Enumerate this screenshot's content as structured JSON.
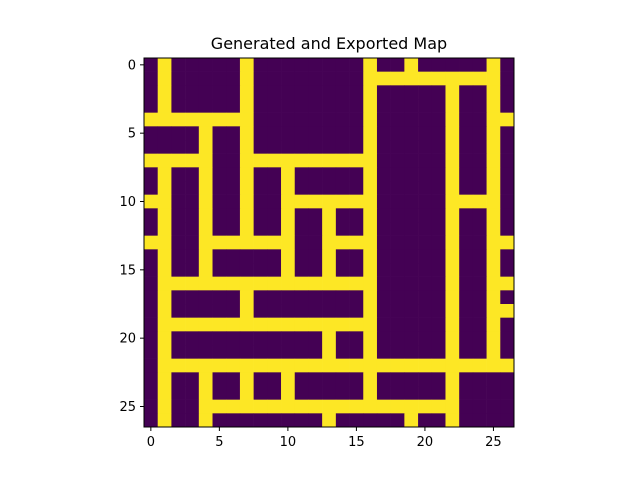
{
  "chart_data": {
    "type": "heatmap",
    "title": "Generated and Exported Map",
    "xlabel": "",
    "ylabel": "",
    "rows": 27,
    "cols": 27,
    "xlim": [
      -0.5,
      26.5
    ],
    "ylim": [
      26.5,
      -0.5
    ],
    "x_ticks": [
      0,
      5,
      10,
      15,
      20,
      25
    ],
    "y_ticks": [
      0,
      5,
      10,
      15,
      20,
      25
    ],
    "grid": false,
    "colormap": "viridis",
    "colors": {
      "0": "#440154",
      "1": "#fde725"
    },
    "cells": [
      [
        0,
        1,
        0,
        0,
        0,
        0,
        0,
        1,
        0,
        0,
        0,
        0,
        0,
        0,
        0,
        0,
        1,
        0,
        0,
        1,
        0,
        0,
        0,
        0,
        0,
        1,
        0
      ],
      [
        0,
        1,
        0,
        0,
        0,
        0,
        0,
        1,
        0,
        0,
        0,
        0,
        0,
        0,
        0,
        0,
        1,
        1,
        1,
        1,
        1,
        1,
        1,
        1,
        1,
        1,
        0
      ],
      [
        0,
        1,
        0,
        0,
        0,
        0,
        0,
        1,
        0,
        0,
        0,
        0,
        0,
        0,
        0,
        0,
        1,
        0,
        0,
        0,
        0,
        0,
        1,
        0,
        0,
        1,
        0
      ],
      [
        0,
        1,
        0,
        0,
        0,
        0,
        0,
        1,
        0,
        0,
        0,
        0,
        0,
        0,
        0,
        0,
        1,
        0,
        0,
        0,
        0,
        0,
        1,
        0,
        0,
        1,
        0
      ],
      [
        1,
        1,
        1,
        1,
        1,
        1,
        1,
        1,
        0,
        0,
        0,
        0,
        0,
        0,
        0,
        0,
        1,
        0,
        0,
        0,
        0,
        0,
        1,
        0,
        0,
        1,
        1
      ],
      [
        0,
        0,
        0,
        0,
        1,
        0,
        0,
        1,
        0,
        0,
        0,
        0,
        0,
        0,
        0,
        0,
        1,
        0,
        0,
        0,
        0,
        0,
        1,
        0,
        0,
        1,
        0
      ],
      [
        0,
        0,
        0,
        0,
        1,
        0,
        0,
        1,
        0,
        0,
        0,
        0,
        0,
        0,
        0,
        0,
        1,
        0,
        0,
        0,
        0,
        0,
        1,
        0,
        0,
        1,
        0
      ],
      [
        1,
        1,
        1,
        1,
        1,
        0,
        0,
        1,
        1,
        1,
        1,
        1,
        1,
        1,
        1,
        1,
        1,
        0,
        0,
        0,
        0,
        0,
        1,
        0,
        0,
        1,
        0
      ],
      [
        0,
        1,
        0,
        0,
        1,
        0,
        0,
        1,
        0,
        0,
        1,
        0,
        0,
        0,
        0,
        0,
        1,
        0,
        0,
        0,
        0,
        0,
        1,
        0,
        0,
        1,
        0
      ],
      [
        0,
        1,
        0,
        0,
        1,
        0,
        0,
        1,
        0,
        0,
        1,
        0,
        0,
        0,
        0,
        0,
        1,
        0,
        0,
        0,
        0,
        0,
        1,
        0,
        0,
        1,
        0
      ],
      [
        1,
        1,
        0,
        0,
        1,
        0,
        0,
        1,
        0,
        0,
        1,
        1,
        1,
        1,
        1,
        1,
        1,
        0,
        0,
        0,
        0,
        0,
        1,
        1,
        1,
        1,
        0
      ],
      [
        0,
        1,
        0,
        0,
        1,
        0,
        0,
        1,
        0,
        0,
        1,
        0,
        0,
        1,
        0,
        0,
        1,
        0,
        0,
        0,
        0,
        0,
        1,
        0,
        0,
        1,
        0
      ],
      [
        0,
        1,
        0,
        0,
        1,
        0,
        0,
        1,
        0,
        0,
        1,
        0,
        0,
        1,
        0,
        0,
        1,
        0,
        0,
        0,
        0,
        0,
        1,
        0,
        0,
        1,
        0
      ],
      [
        1,
        1,
        0,
        0,
        1,
        1,
        1,
        1,
        1,
        1,
        1,
        0,
        0,
        1,
        1,
        1,
        1,
        0,
        0,
        0,
        0,
        0,
        1,
        0,
        0,
        1,
        1
      ],
      [
        0,
        1,
        0,
        0,
        1,
        0,
        0,
        0,
        0,
        0,
        1,
        0,
        0,
        1,
        0,
        0,
        1,
        0,
        0,
        0,
        0,
        0,
        1,
        0,
        0,
        1,
        0
      ],
      [
        0,
        1,
        0,
        0,
        1,
        0,
        0,
        0,
        0,
        0,
        1,
        0,
        0,
        1,
        0,
        0,
        1,
        0,
        0,
        0,
        0,
        0,
        1,
        0,
        0,
        1,
        0
      ],
      [
        0,
        1,
        1,
        1,
        1,
        1,
        1,
        1,
        1,
        1,
        1,
        1,
        1,
        1,
        1,
        1,
        1,
        0,
        0,
        0,
        0,
        0,
        1,
        0,
        0,
        1,
        1
      ],
      [
        0,
        1,
        0,
        0,
        0,
        0,
        0,
        1,
        0,
        0,
        0,
        0,
        0,
        0,
        0,
        0,
        1,
        0,
        0,
        0,
        0,
        0,
        1,
        0,
        0,
        1,
        0
      ],
      [
        0,
        1,
        0,
        0,
        0,
        0,
        0,
        1,
        0,
        0,
        0,
        0,
        0,
        0,
        0,
        0,
        1,
        0,
        0,
        0,
        0,
        0,
        1,
        0,
        0,
        1,
        1
      ],
      [
        0,
        1,
        1,
        1,
        1,
        1,
        1,
        1,
        1,
        1,
        1,
        1,
        1,
        1,
        1,
        1,
        1,
        0,
        0,
        0,
        0,
        0,
        1,
        0,
        0,
        1,
        0
      ],
      [
        0,
        1,
        0,
        0,
        0,
        0,
        0,
        0,
        0,
        0,
        0,
        0,
        0,
        1,
        0,
        0,
        1,
        0,
        0,
        0,
        0,
        0,
        1,
        0,
        0,
        1,
        0
      ],
      [
        0,
        1,
        0,
        0,
        0,
        0,
        0,
        0,
        0,
        0,
        0,
        0,
        0,
        1,
        0,
        0,
        1,
        0,
        0,
        0,
        0,
        0,
        1,
        0,
        0,
        1,
        0
      ],
      [
        0,
        1,
        1,
        1,
        1,
        1,
        1,
        1,
        1,
        1,
        1,
        1,
        1,
        1,
        1,
        1,
        1,
        1,
        1,
        1,
        1,
        1,
        1,
        1,
        1,
        1,
        1
      ],
      [
        0,
        1,
        0,
        0,
        1,
        0,
        0,
        1,
        0,
        0,
        1,
        0,
        0,
        0,
        0,
        0,
        1,
        0,
        0,
        0,
        0,
        0,
        1,
        0,
        0,
        0,
        0
      ],
      [
        0,
        1,
        0,
        0,
        1,
        0,
        0,
        1,
        0,
        0,
        1,
        0,
        0,
        0,
        0,
        0,
        1,
        0,
        0,
        0,
        0,
        0,
        1,
        0,
        0,
        0,
        0
      ],
      [
        0,
        1,
        0,
        0,
        1,
        1,
        1,
        1,
        1,
        1,
        1,
        1,
        1,
        1,
        1,
        1,
        1,
        1,
        1,
        1,
        1,
        1,
        1,
        0,
        0,
        0,
        0
      ],
      [
        0,
        1,
        0,
        0,
        1,
        0,
        0,
        0,
        0,
        0,
        0,
        0,
        0,
        1,
        0,
        0,
        0,
        0,
        0,
        1,
        0,
        0,
        1,
        0,
        0,
        0,
        0
      ]
    ]
  }
}
